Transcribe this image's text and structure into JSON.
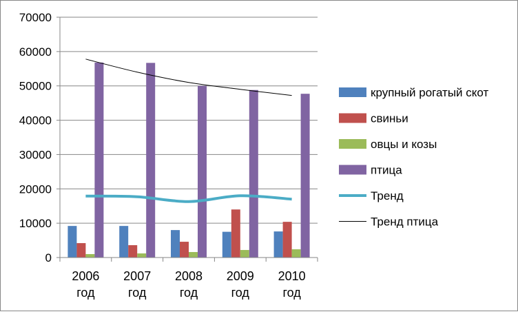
{
  "chart_data": {
    "type": "bar",
    "categories": [
      "2006 год",
      "2007 год",
      "2008 год",
      "2009 год",
      "2010 год"
    ],
    "category_lines": [
      [
        "2006",
        "год"
      ],
      [
        "2007",
        "год"
      ],
      [
        "2008",
        "год"
      ],
      [
        "2009",
        "год"
      ],
      [
        "2010",
        "год"
      ]
    ],
    "ylim": [
      0,
      70000
    ],
    "yticks": [
      0,
      10000,
      20000,
      30000,
      40000,
      50000,
      60000,
      70000
    ],
    "grid": true,
    "legend_position": "right",
    "series": [
      {
        "name": "крупный рогатый скот",
        "color": "#4F81BD",
        "values": [
          9200,
          9200,
          8000,
          7500,
          7600
        ]
      },
      {
        "name": "свиньи",
        "color": "#C0504D",
        "values": [
          4200,
          3600,
          4600,
          14000,
          10400
        ]
      },
      {
        "name": "овцы и козы",
        "color": "#9BBB59",
        "values": [
          1000,
          1200,
          1600,
          2200,
          2400
        ]
      },
      {
        "name": "птица",
        "color": "#8064A2",
        "values": [
          56800,
          56700,
          50000,
          48800,
          47700
        ]
      }
    ],
    "lines": [
      {
        "name": "Тренд",
        "color": "#4BACC6",
        "values": [
          17900,
          17700,
          16300,
          18000,
          17000
        ]
      },
      {
        "name": "Тренд птица",
        "color": "#000000",
        "values": [
          57800,
          54000,
          51000,
          49000,
          47200
        ]
      }
    ]
  }
}
